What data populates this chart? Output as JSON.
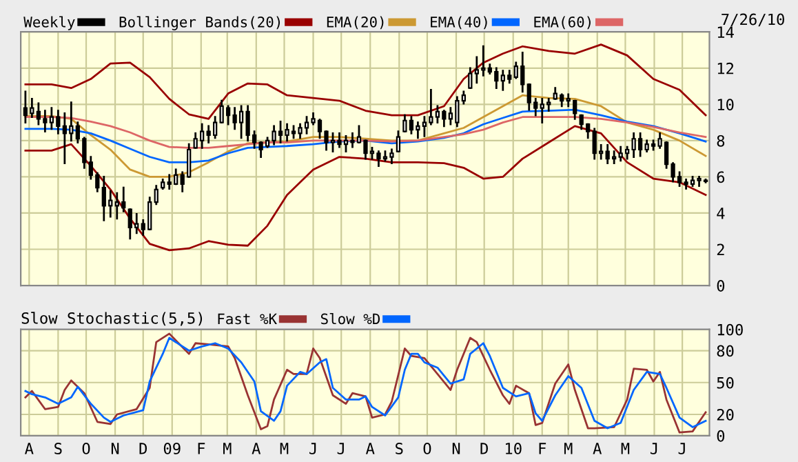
{
  "chart_data": [
    {
      "type": "candlestick",
      "legend": "top",
      "grid": true,
      "tick_labels": "y",
      "annotations": [
        "7/26/10"
      ],
      "xlim": [
        "2008-07-23",
        "2010-07-30"
      ],
      "ylim": [
        0,
        14
      ],
      "yticks": [
        0,
        2,
        4,
        6,
        8,
        10,
        12,
        14
      ],
      "xticks": [
        {
          "value": "2008-08-01",
          "label": null
        },
        {
          "value": "2008-09-01",
          "label": null
        },
        {
          "value": "2008-10-01",
          "label": null
        },
        {
          "value": "2008-11-01",
          "label": null
        },
        {
          "value": "2008-12-01",
          "label": null
        },
        {
          "value": "2009-01-01",
          "label": null
        },
        {
          "value": "2009-02-01",
          "label": null
        },
        {
          "value": "2009-03-01",
          "label": null
        },
        {
          "value": "2009-04-01",
          "label": null
        },
        {
          "value": "2009-05-01",
          "label": null
        },
        {
          "value": "2009-06-01",
          "label": null
        },
        {
          "value": "2009-07-01",
          "label": null
        },
        {
          "value": "2009-08-01",
          "label": null
        },
        {
          "value": "2009-09-01",
          "label": null
        },
        {
          "value": "2009-10-01",
          "label": null
        },
        {
          "value": "2009-11-01",
          "label": null
        },
        {
          "value": "2009-12-01",
          "label": null
        },
        {
          "value": "2010-01-01",
          "label": null
        },
        {
          "value": "2010-02-01",
          "label": null
        },
        {
          "value": "2010-03-01",
          "label": null
        },
        {
          "value": "2010-04-01",
          "label": null
        },
        {
          "value": "2010-05-01",
          "label": null
        },
        {
          "value": "2010-06-01",
          "label": null
        },
        {
          "value": "2010-07-01",
          "label": null
        }
      ],
      "series": [
        {
          "name": "Weekly",
          "color": "#000000",
          "x": [
            "2008-07-28",
            "2008-08-04",
            "2008-08-11",
            "2008-08-18",
            "2008-08-25",
            "2008-09-01",
            "2008-09-08",
            "2008-09-15",
            "2008-09-22",
            "2008-09-29",
            "2008-10-06",
            "2008-10-13",
            "2008-10-20",
            "2008-10-27",
            "2008-11-03",
            "2008-11-10",
            "2008-11-17",
            "2008-11-24",
            "2008-12-01",
            "2008-12-08",
            "2008-12-15",
            "2008-12-22",
            "2008-12-29",
            "2009-01-05",
            "2009-01-12",
            "2009-01-19",
            "2009-01-26",
            "2009-02-02",
            "2009-02-09",
            "2009-02-16",
            "2009-02-23",
            "2009-03-02",
            "2009-03-09",
            "2009-03-16",
            "2009-03-23",
            "2009-03-30",
            "2009-04-06",
            "2009-04-13",
            "2009-04-20",
            "2009-04-27",
            "2009-05-04",
            "2009-05-11",
            "2009-05-18",
            "2009-05-25",
            "2009-06-01",
            "2009-06-08",
            "2009-06-15",
            "2009-06-22",
            "2009-06-29",
            "2009-07-06",
            "2009-07-13",
            "2009-07-20",
            "2009-07-27",
            "2009-08-03",
            "2009-08-10",
            "2009-08-17",
            "2009-08-24",
            "2009-08-31",
            "2009-09-07",
            "2009-09-14",
            "2009-09-21",
            "2009-09-28",
            "2009-10-05",
            "2009-10-12",
            "2009-10-19",
            "2009-10-26",
            "2009-11-02",
            "2009-11-09",
            "2009-11-16",
            "2009-11-23",
            "2009-11-30",
            "2009-12-07",
            "2009-12-14",
            "2009-12-21",
            "2009-12-28",
            "2010-01-04",
            "2010-01-11",
            "2010-01-18",
            "2010-01-25",
            "2010-02-01",
            "2010-02-08",
            "2010-02-15",
            "2010-02-22",
            "2010-03-01",
            "2010-03-08",
            "2010-03-15",
            "2010-03-22",
            "2010-03-29",
            "2010-04-05",
            "2010-04-12",
            "2010-04-19",
            "2010-04-26",
            "2010-05-03",
            "2010-05-10",
            "2010-05-17",
            "2010-05-24",
            "2010-05-31",
            "2010-06-07",
            "2010-06-14",
            "2010-06-21",
            "2010-06-28",
            "2010-07-05",
            "2010-07-12",
            "2010-07-19",
            "2010-07-26"
          ],
          "ohlc": [
            [
              9.8,
              10.7,
              9.0,
              9.4
            ],
            [
              9.5,
              10.3,
              9.3,
              9.8
            ],
            [
              9.6,
              10.05,
              8.9,
              9.2
            ],
            [
              9.2,
              9.65,
              8.5,
              9.0
            ],
            [
              9.0,
              9.8,
              8.65,
              9.3
            ],
            [
              9.3,
              9.65,
              8.4,
              8.8
            ],
            [
              8.8,
              9.5,
              6.75,
              8.4
            ],
            [
              8.4,
              10.1,
              8.0,
              8.8
            ],
            [
              8.8,
              9.0,
              7.9,
              8.1
            ],
            [
              8.1,
              8.15,
              6.5,
              6.8
            ],
            [
              6.8,
              7.1,
              5.9,
              6.1
            ],
            [
              6.1,
              6.2,
              5.2,
              5.4
            ],
            [
              5.4,
              6.0,
              3.6,
              4.4
            ],
            [
              4.4,
              5.2,
              3.8,
              4.7
            ],
            [
              4.4,
              5.1,
              3.7,
              4.6
            ],
            [
              4.6,
              5.4,
              4.1,
              4.3
            ],
            [
              4.2,
              4.2,
              2.6,
              3.2
            ],
            [
              3.2,
              3.95,
              2.9,
              3.4
            ],
            [
              3.4,
              3.6,
              2.8,
              3.1
            ],
            [
              3.1,
              4.85,
              3.1,
              4.6
            ],
            [
              4.6,
              5.5,
              4.5,
              5.3
            ],
            [
              5.4,
              5.85,
              5.35,
              5.7
            ],
            [
              5.7,
              6.1,
              5.35,
              5.6
            ],
            [
              5.6,
              6.4,
              5.6,
              6.1
            ],
            [
              6.1,
              6.25,
              5.2,
              5.6
            ],
            [
              6.0,
              7.8,
              6.0,
              7.5
            ],
            [
              7.6,
              8.4,
              7.6,
              8.1
            ],
            [
              8.0,
              8.9,
              7.6,
              8.5
            ],
            [
              8.5,
              8.8,
              7.9,
              8.3
            ],
            [
              8.3,
              9.3,
              8.15,
              9.0
            ],
            [
              9.0,
              10.2,
              9.0,
              9.9
            ],
            [
              9.8,
              9.9,
              8.9,
              9.4
            ],
            [
              9.4,
              9.8,
              8.65,
              9.0
            ],
            [
              9.0,
              9.9,
              8.15,
              9.6
            ],
            [
              9.6,
              9.9,
              8.0,
              8.3
            ],
            [
              8.3,
              8.5,
              7.6,
              7.9
            ],
            [
              7.9,
              7.9,
              7.1,
              7.5
            ],
            [
              7.7,
              8.15,
              7.65,
              8.0
            ],
            [
              8.0,
              8.8,
              7.8,
              8.5
            ],
            [
              8.5,
              9.05,
              7.9,
              8.3
            ],
            [
              8.3,
              8.9,
              8.0,
              8.6
            ],
            [
              8.5,
              8.8,
              8.15,
              8.4
            ],
            [
              8.4,
              8.9,
              8.15,
              8.7
            ],
            [
              8.7,
              9.3,
              8.4,
              9.0
            ],
            [
              9.0,
              9.5,
              8.9,
              9.2
            ],
            [
              9.1,
              9.15,
              8.15,
              8.5
            ],
            [
              8.5,
              8.5,
              7.5,
              7.9
            ],
            [
              7.9,
              8.4,
              7.4,
              8.0
            ],
            [
              8.0,
              8.4,
              7.65,
              7.8
            ],
            [
              7.8,
              8.25,
              7.4,
              8.0
            ],
            [
              8.0,
              8.4,
              7.65,
              7.9
            ],
            [
              7.9,
              8.8,
              7.9,
              8.2
            ],
            [
              8.0,
              8.0,
              7.0,
              7.3
            ],
            [
              7.3,
              7.6,
              7.0,
              7.4
            ],
            [
              7.3,
              7.4,
              6.6,
              7.0
            ],
            [
              7.0,
              7.4,
              6.9,
              7.1
            ],
            [
              7.1,
              7.5,
              6.75,
              7.3
            ],
            [
              7.4,
              8.5,
              7.4,
              8.2
            ],
            [
              8.5,
              9.4,
              8.5,
              9.1
            ],
            [
              9.1,
              9.3,
              8.4,
              8.6
            ],
            [
              8.6,
              9.0,
              8.15,
              8.8
            ],
            [
              8.8,
              9.3,
              8.25,
              9.0
            ],
            [
              9.0,
              10.8,
              8.9,
              9.3
            ],
            [
              9.3,
              9.9,
              9.0,
              9.6
            ],
            [
              9.6,
              9.65,
              8.8,
              9.2
            ],
            [
              9.2,
              9.8,
              8.9,
              9.5
            ],
            [
              9.0,
              10.4,
              8.8,
              10.2
            ],
            [
              10.2,
              10.7,
              10.05,
              10.5
            ],
            [
              10.9,
              12.0,
              10.9,
              11.7
            ],
            [
              11.7,
              12.6,
              11.2,
              11.9
            ],
            [
              11.9,
              13.2,
              11.6,
              12.0
            ],
            [
              12.0,
              12.2,
              11.7,
              11.8
            ],
            [
              11.8,
              12.0,
              10.9,
              11.3
            ],
            [
              11.3,
              11.85,
              10.8,
              11.6
            ],
            [
              11.6,
              11.85,
              11.2,
              11.4
            ],
            [
              11.5,
              12.3,
              11.45,
              12.1
            ],
            [
              12.1,
              12.85,
              10.7,
              11.1
            ],
            [
              11.1,
              11.1,
              9.7,
              10.1
            ],
            [
              10.1,
              10.3,
              9.4,
              9.8
            ],
            [
              9.8,
              10.3,
              9.0,
              10.0
            ],
            [
              10.0,
              10.3,
              9.65,
              10.1
            ],
            [
              10.3,
              10.9,
              10.3,
              10.6
            ],
            [
              10.5,
              10.55,
              9.9,
              10.2
            ],
            [
              10.2,
              10.55,
              9.9,
              10.3
            ],
            [
              10.2,
              10.2,
              9.2,
              9.5
            ],
            [
              9.4,
              9.4,
              8.65,
              8.9
            ],
            [
              8.9,
              8.9,
              8.15,
              8.5
            ],
            [
              8.5,
              8.65,
              7.0,
              7.3
            ],
            [
              7.3,
              7.75,
              7.0,
              7.4
            ],
            [
              7.4,
              7.75,
              6.75,
              7.0
            ],
            [
              7.0,
              7.4,
              6.75,
              7.1
            ],
            [
              7.1,
              7.65,
              6.9,
              7.3
            ],
            [
              7.3,
              7.65,
              7.0,
              7.5
            ],
            [
              7.5,
              8.4,
              7.1,
              8.1
            ],
            [
              8.1,
              8.4,
              7.15,
              7.5
            ],
            [
              7.5,
              8.0,
              7.4,
              7.8
            ],
            [
              7.8,
              8.0,
              7.5,
              7.7
            ],
            [
              7.7,
              8.4,
              7.6,
              8.1
            ],
            [
              7.9,
              7.9,
              6.5,
              6.7
            ],
            [
              6.7,
              6.75,
              5.75,
              6.0
            ],
            [
              6.0,
              6.25,
              5.5,
              5.7
            ],
            [
              5.7,
              5.85,
              5.35,
              5.6
            ],
            [
              5.6,
              6.0,
              5.5,
              5.8
            ],
            [
              5.8,
              6.0,
              5.5,
              5.9
            ],
            [
              5.8,
              5.85,
              5.7,
              5.75
            ]
          ]
        },
        {
          "type": "line",
          "name": "Bollinger Bands(20)",
          "color": "#990000",
          "x": [
            "2008-07-28",
            "2008-08-25",
            "2008-09-15",
            "2008-10-06",
            "2008-10-27",
            "2008-11-17",
            "2008-12-08",
            "2008-12-29",
            "2009-01-19",
            "2009-02-09",
            "2009-03-02",
            "2009-03-23",
            "2009-04-13",
            "2009-05-04",
            "2009-06-01",
            "2009-06-29",
            "2009-07-27",
            "2009-08-24",
            "2009-09-21",
            "2009-10-19",
            "2009-11-09",
            "2009-11-30",
            "2009-12-21",
            "2010-01-11",
            "2010-02-08",
            "2010-03-08",
            "2010-04-05",
            "2010-05-03",
            "2010-05-31",
            "2010-06-28",
            "2010-07-26"
          ],
          "values": [
            11.1,
            11.1,
            10.9,
            11.4,
            12.25,
            12.3,
            11.5,
            10.3,
            9.45,
            9.2,
            10.6,
            11.15,
            11.1,
            10.5,
            10.35,
            10.2,
            9.65,
            9.4,
            9.4,
            9.9,
            11.4,
            12.3,
            12.8,
            13.2,
            12.95,
            12.8,
            13.3,
            12.7,
            11.4,
            10.8,
            9.4
          ]
        },
        {
          "type": "line",
          "color": "#990000",
          "x": [
            "2008-07-28",
            "2008-08-25",
            "2008-09-15",
            "2008-10-06",
            "2008-10-27",
            "2008-11-17",
            "2008-12-08",
            "2008-12-29",
            "2009-01-19",
            "2009-02-09",
            "2009-03-02",
            "2009-03-23",
            "2009-04-13",
            "2009-05-04",
            "2009-06-01",
            "2009-06-29",
            "2009-07-27",
            "2009-08-24",
            "2009-09-21",
            "2009-10-19",
            "2009-11-09",
            "2009-11-30",
            "2009-12-21",
            "2010-01-11",
            "2010-02-08",
            "2010-03-08",
            "2010-04-05",
            "2010-05-03",
            "2010-05-31",
            "2010-06-28",
            "2010-07-26"
          ],
          "values": [
            7.45,
            7.45,
            7.8,
            6.6,
            5.3,
            3.7,
            2.3,
            1.95,
            2.05,
            2.45,
            2.25,
            2.2,
            3.3,
            5.0,
            6.4,
            7.1,
            7.0,
            6.8,
            6.8,
            6.75,
            6.5,
            5.9,
            6.0,
            7.0,
            7.9,
            8.8,
            8.4,
            6.8,
            5.9,
            5.7,
            5.0
          ]
        },
        {
          "type": "line",
          "name": "EMA(20)",
          "color": "#cc9933",
          "x": [
            "2008-07-28",
            "2008-08-25",
            "2008-09-15",
            "2008-10-06",
            "2008-10-27",
            "2008-11-17",
            "2008-12-08",
            "2008-12-29",
            "2009-01-19",
            "2009-02-09",
            "2009-03-02",
            "2009-03-23",
            "2009-04-13",
            "2009-05-04",
            "2009-06-01",
            "2009-06-29",
            "2009-07-27",
            "2009-08-24",
            "2009-09-21",
            "2009-10-19",
            "2009-11-09",
            "2009-11-30",
            "2009-12-21",
            "2010-01-11",
            "2010-02-08",
            "2010-03-08",
            "2010-04-05",
            "2010-05-03",
            "2010-05-31",
            "2010-06-28",
            "2010-07-26"
          ],
          "values": [
            9.35,
            9.35,
            9.2,
            8.3,
            7.5,
            6.4,
            6.0,
            6.0,
            6.25,
            6.8,
            7.4,
            7.85,
            7.9,
            7.95,
            8.2,
            8.2,
            8.1,
            8.0,
            8.0,
            8.4,
            8.7,
            9.3,
            9.9,
            10.5,
            10.35,
            10.3,
            9.9,
            9.0,
            8.6,
            8.0,
            7.15
          ]
        },
        {
          "type": "line",
          "name": "EMA(40)",
          "color": "#0066ff",
          "x": [
            "2008-07-28",
            "2008-08-25",
            "2008-09-15",
            "2008-10-06",
            "2008-10-27",
            "2008-11-17",
            "2008-12-08",
            "2008-12-29",
            "2009-01-19",
            "2009-02-09",
            "2009-03-02",
            "2009-03-23",
            "2009-04-13",
            "2009-05-04",
            "2009-06-01",
            "2009-06-29",
            "2009-07-27",
            "2009-08-24",
            "2009-09-21",
            "2009-10-19",
            "2009-11-09",
            "2009-11-30",
            "2009-12-21",
            "2010-01-11",
            "2010-02-08",
            "2010-03-08",
            "2010-04-05",
            "2010-05-03",
            "2010-05-31",
            "2010-06-28",
            "2010-07-26"
          ],
          "values": [
            8.65,
            8.65,
            8.6,
            8.4,
            8.0,
            7.55,
            7.1,
            6.8,
            6.8,
            6.9,
            7.3,
            7.6,
            7.65,
            7.7,
            7.8,
            7.95,
            8.0,
            7.85,
            7.95,
            8.15,
            8.4,
            8.9,
            9.25,
            9.6,
            9.65,
            9.7,
            9.4,
            9.05,
            8.8,
            8.4,
            7.95
          ]
        },
        {
          "type": "line",
          "name": "EMA(60)",
          "color": "#dd6666",
          "x": [
            "2008-07-28",
            "2008-08-25",
            "2008-09-15",
            "2008-10-06",
            "2008-10-27",
            "2008-11-17",
            "2008-12-08",
            "2008-12-29",
            "2009-01-19",
            "2009-02-09",
            "2009-03-02",
            "2009-03-23",
            "2009-04-13",
            "2009-05-04",
            "2009-06-01",
            "2009-06-29",
            "2009-07-27",
            "2009-08-24",
            "2009-09-21",
            "2009-10-19",
            "2009-11-09",
            "2009-11-30",
            "2009-12-21",
            "2010-01-11",
            "2010-02-08",
            "2010-03-08",
            "2010-04-05",
            "2010-05-03",
            "2010-05-31",
            "2010-06-28",
            "2010-07-26"
          ],
          "values": [
            9.3,
            9.3,
            9.25,
            9.05,
            8.8,
            8.45,
            8.0,
            7.65,
            7.6,
            7.6,
            7.7,
            7.8,
            7.9,
            7.9,
            8.0,
            8.0,
            8.0,
            7.95,
            8.0,
            8.2,
            8.35,
            8.6,
            9.0,
            9.3,
            9.3,
            9.3,
            9.2,
            9.0,
            8.75,
            8.45,
            8.2
          ]
        }
      ]
    },
    {
      "type": "line",
      "title": "Slow Stochastic(5,5)",
      "legend": "top",
      "grid": true,
      "xlim": [
        "2008-07-23",
        "2010-07-30"
      ],
      "ylim": [
        0,
        100
      ],
      "yticks": [
        0,
        20,
        50,
        80,
        100
      ],
      "xticks": [
        {
          "value": "2008-08-01",
          "label": "A"
        },
        {
          "value": "2008-09-01",
          "label": "S"
        },
        {
          "value": "2008-10-01",
          "label": "O"
        },
        {
          "value": "2008-11-01",
          "label": "N"
        },
        {
          "value": "2008-12-01",
          "label": "D"
        },
        {
          "value": "2009-01-01",
          "label": "09"
        },
        {
          "value": "2009-02-01",
          "label": "F"
        },
        {
          "value": "2009-03-01",
          "label": "M"
        },
        {
          "value": "2009-04-01",
          "label": "A"
        },
        {
          "value": "2009-05-01",
          "label": "M"
        },
        {
          "value": "2009-06-01",
          "label": "J"
        },
        {
          "value": "2009-07-01",
          "label": "J"
        },
        {
          "value": "2009-08-01",
          "label": "A"
        },
        {
          "value": "2009-09-01",
          "label": "S"
        },
        {
          "value": "2009-10-01",
          "label": "O"
        },
        {
          "value": "2009-11-01",
          "label": "N"
        },
        {
          "value": "2009-12-01",
          "label": "D"
        },
        {
          "value": "2010-01-01",
          "label": "10"
        },
        {
          "value": "2010-02-01",
          "label": "F"
        },
        {
          "value": "2010-03-01",
          "label": "M"
        },
        {
          "value": "2010-04-01",
          "label": "A"
        },
        {
          "value": "2010-05-01",
          "label": "M"
        },
        {
          "value": "2010-06-01",
          "label": "J"
        },
        {
          "value": "2010-07-01",
          "label": "J"
        }
      ],
      "series": [
        {
          "name": "Fast %K",
          "color": "#993333",
          "x": [
            "2008-07-28",
            "2008-08-04",
            "2008-08-18",
            "2008-09-01",
            "2008-09-08",
            "2008-09-15",
            "2008-09-29",
            "2008-10-13",
            "2008-10-27",
            "2008-11-03",
            "2008-11-24",
            "2008-12-08",
            "2008-12-15",
            "2008-12-29",
            "2009-01-19",
            "2009-01-26",
            "2009-02-09",
            "2009-03-02",
            "2009-03-09",
            "2009-03-23",
            "2009-04-06",
            "2009-04-13",
            "2009-04-20",
            "2009-05-04",
            "2009-05-11",
            "2009-05-25",
            "2009-06-01",
            "2009-06-08",
            "2009-06-22",
            "2009-07-06",
            "2009-07-13",
            "2009-07-27",
            "2009-08-03",
            "2009-08-17",
            "2009-08-24",
            "2009-09-07",
            "2009-09-14",
            "2009-09-28",
            "2009-10-12",
            "2009-10-26",
            "2009-11-02",
            "2009-11-16",
            "2009-11-23",
            "2009-12-07",
            "2009-12-21",
            "2009-12-28",
            "2010-01-04",
            "2010-01-18",
            "2010-01-25",
            "2010-02-01",
            "2010-02-15",
            "2010-03-01",
            "2010-03-08",
            "2010-03-22",
            "2010-03-29",
            "2010-04-19",
            "2010-05-03",
            "2010-05-10",
            "2010-05-24",
            "2010-05-31",
            "2010-06-07",
            "2010-06-14",
            "2010-06-28",
            "2010-07-12",
            "2010-07-26"
          ],
          "values": [
            36,
            42,
            25,
            27,
            43,
            52,
            40,
            13,
            11,
            20,
            25,
            45,
            88,
            96,
            77,
            87,
            86,
            84,
            73,
            38,
            6,
            9,
            34,
            62,
            58,
            58,
            82,
            73,
            38,
            30,
            40,
            37,
            17,
            20,
            32,
            82,
            75,
            73,
            58,
            43,
            62,
            92,
            88,
            62,
            38,
            30,
            47,
            40,
            10,
            12,
            49,
            67,
            43,
            7,
            7,
            8,
            34,
            63,
            62,
            51,
            60,
            34,
            3,
            4,
            22
          ]
        },
        {
          "name": "Slow %D",
          "color": "#0066ff",
          "x": [
            "2008-07-28",
            "2008-08-04",
            "2008-08-18",
            "2008-09-01",
            "2008-09-15",
            "2008-09-22",
            "2008-10-06",
            "2008-10-20",
            "2008-10-27",
            "2008-11-10",
            "2008-12-01",
            "2008-12-08",
            "2008-12-22",
            "2008-12-29",
            "2009-01-19",
            "2009-02-02",
            "2009-02-16",
            "2009-03-02",
            "2009-03-16",
            "2009-03-30",
            "2009-04-06",
            "2009-04-20",
            "2009-04-27",
            "2009-05-04",
            "2009-05-18",
            "2009-05-25",
            "2009-06-08",
            "2009-06-15",
            "2009-06-22",
            "2009-07-06",
            "2009-07-20",
            "2009-07-27",
            "2009-08-03",
            "2009-08-17",
            "2009-08-31",
            "2009-09-07",
            "2009-09-14",
            "2009-09-21",
            "2009-09-28",
            "2009-10-12",
            "2009-10-26",
            "2009-11-09",
            "2009-11-16",
            "2009-11-30",
            "2009-12-07",
            "2009-12-21",
            "2010-01-04",
            "2010-01-18",
            "2010-01-25",
            "2010-02-01",
            "2010-02-15",
            "2010-03-01",
            "2010-03-15",
            "2010-03-29",
            "2010-04-12",
            "2010-04-26",
            "2010-05-10",
            "2010-05-24",
            "2010-06-07",
            "2010-06-14",
            "2010-06-28",
            "2010-07-12",
            "2010-07-26"
          ],
          "values": [
            42,
            39,
            36,
            30,
            36,
            46,
            30,
            17,
            13,
            19,
            24,
            51,
            77,
            92,
            80,
            84,
            87,
            82,
            69,
            51,
            23,
            14,
            23,
            47,
            60,
            58,
            69,
            72,
            45,
            34,
            34,
            37,
            27,
            19,
            36,
            62,
            77,
            77,
            69,
            64,
            49,
            53,
            77,
            87,
            75,
            45,
            37,
            40,
            21,
            14,
            38,
            56,
            45,
            14,
            7,
            12,
            43,
            60,
            58,
            45,
            17,
            8,
            14
          ]
        }
      ]
    }
  ]
}
